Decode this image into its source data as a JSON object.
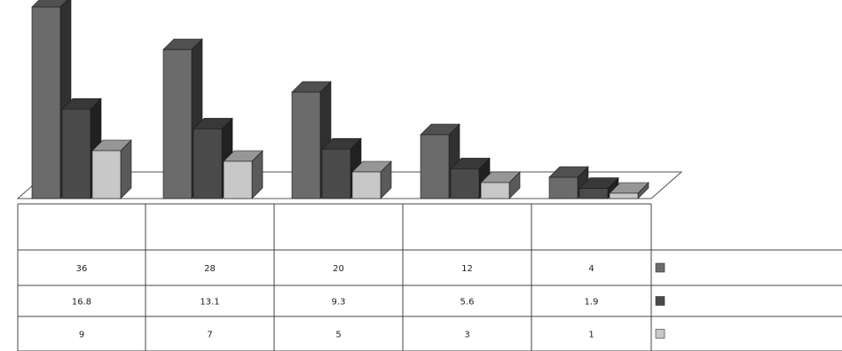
{
  "chart_data": {
    "type": "bar",
    "title": "",
    "xlabel": "",
    "ylabel": "",
    "ylim": [
      0,
      36
    ],
    "grid": false,
    "legend_position": "right",
    "categories": [
      "",
      "",
      "",
      "",
      ""
    ],
    "series": [
      {
        "name": "",
        "color": "#6b6b6b",
        "values": [
          36,
          28,
          20,
          12,
          4
        ]
      },
      {
        "name": "",
        "color": "#4a4a4a",
        "values": [
          16.8,
          13.1,
          9.3,
          5.6,
          1.9
        ]
      },
      {
        "name": "",
        "color": "#c8c8c8",
        "values": [
          9,
          7,
          5,
          3,
          1
        ]
      }
    ],
    "table_rows": [
      [
        "36",
        "28",
        "20",
        "12",
        "4"
      ],
      [
        "16.8",
        "13.1",
        "9.3",
        "5.6",
        "1.9"
      ],
      [
        "9",
        "7",
        "5",
        "3",
        "1"
      ]
    ]
  }
}
